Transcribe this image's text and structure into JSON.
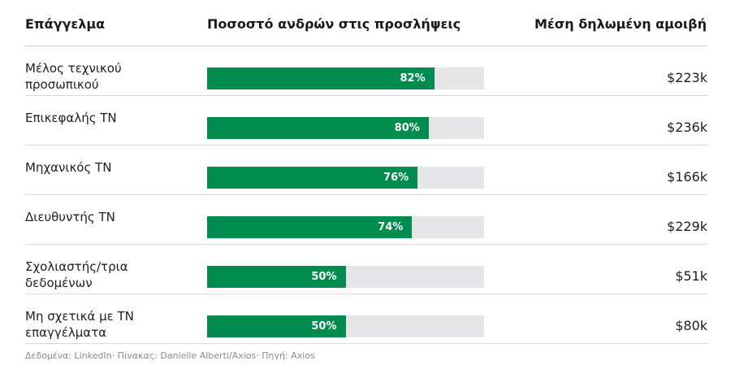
{
  "headers": {
    "occupation": "Επάγγελμα",
    "share": "Ποσοστό ανδρών στις προσλήψεις",
    "salary": "Μέση δηλωμένη αμοιβή"
  },
  "chart_data": {
    "type": "bar",
    "orientation": "horizontal",
    "xlim": [
      0,
      100
    ],
    "categories": [
      "Μέλος τεχνικού προσωπικού",
      "Επικεφαλής ΤΝ",
      "Μηχανικός ΤΝ",
      "Διευθυντής ΤΝ",
      "Σχολιαστής/τρια δεδομένων",
      "Μη σχετικά με ΤΝ επαγγέλματα"
    ],
    "series": [
      {
        "values": [
          82,
          80,
          76,
          74,
          50,
          50
        ]
      }
    ],
    "data_labels": [
      "82%",
      "80%",
      "76%",
      "74%",
      "50%",
      "50%"
    ],
    "salary_labels": [
      "$223k",
      "$236k",
      "$166k",
      "$229k",
      "$51k",
      "$80k"
    ],
    "colors": {
      "bar": "#008c4e",
      "track": "#e6e5e8"
    }
  },
  "footer": "Δεδομένα: LinkedIn· Πίνακας: Danielle Alberti/Axios· Πηγή: Axios"
}
